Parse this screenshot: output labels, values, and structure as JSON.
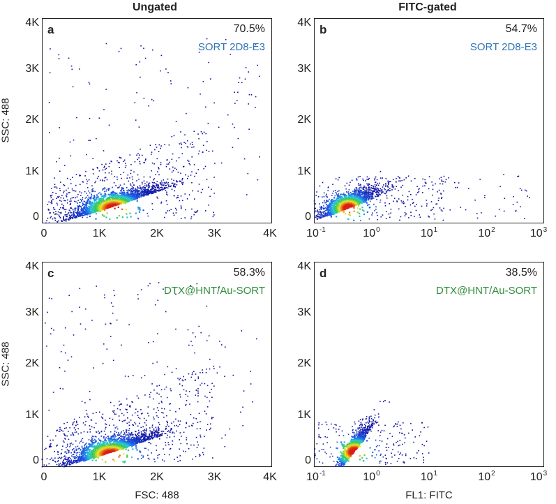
{
  "column_titles": [
    "Ungated",
    "FITC-gated"
  ],
  "colors": {
    "sort_label": "#2e75b6",
    "dtx_label": "#2f8f3a",
    "axis": "#222222",
    "dot_low": "#1010a0"
  },
  "chart_data": [
    {
      "type": "scatter",
      "panel": "a",
      "column": "Ungated",
      "sample": "SORT 2D8-E3",
      "percentage": "70.5%",
      "ylabel": "SSC: 488",
      "xlabel": "",
      "x_scale": "linear",
      "xlim": [
        0,
        4000
      ],
      "ylim": [
        0,
        4000
      ],
      "x_ticks": [
        "0",
        "1K",
        "2K",
        "3K",
        "4K"
      ],
      "y_ticks": [
        "0",
        "1K",
        "2K",
        "3K",
        "4K"
      ],
      "density_peak": {
        "x": 1250,
        "y": 300
      }
    },
    {
      "type": "scatter",
      "panel": "b",
      "column": "FITC-gated",
      "sample": "SORT 2D8-E3",
      "percentage": "54.7%",
      "ylabel": "",
      "xlabel": "",
      "x_scale": "log",
      "xlim": [
        -1,
        3
      ],
      "ylim": [
        0,
        4000
      ],
      "x_ticks_base": [
        "10",
        "10",
        "10",
        "10",
        "10"
      ],
      "x_ticks_exp": [
        "-1",
        "0",
        "1",
        "2",
        "3"
      ],
      "y_ticks": [
        "0",
        "1K",
        "2K",
        "3K",
        "4K"
      ],
      "density_peak": {
        "x": -0.4,
        "y": 300
      }
    },
    {
      "type": "scatter",
      "panel": "c",
      "column": "Ungated",
      "sample": "DTX@HNT/Au-SORT",
      "percentage": "58.3%",
      "ylabel": "SSC: 488",
      "xlabel": "FSC: 488",
      "x_scale": "linear",
      "xlim": [
        0,
        4000
      ],
      "ylim": [
        0,
        4000
      ],
      "x_ticks": [
        "0",
        "1K",
        "2K",
        "3K",
        "4K"
      ],
      "y_ticks": [
        "0",
        "1K",
        "2K",
        "3K",
        "4K"
      ],
      "density_peak": {
        "x": 1200,
        "y": 250
      }
    },
    {
      "type": "scatter",
      "panel": "d",
      "column": "FITC-gated",
      "sample": "DTX@HNT/Au-SORT",
      "percentage": "38.5%",
      "ylabel": "",
      "xlabel": "FL1: FITC",
      "x_scale": "log",
      "xlim": [
        -1,
        3
      ],
      "ylim": [
        0,
        4000
      ],
      "x_ticks_base": [
        "10",
        "10",
        "10",
        "10",
        "10"
      ],
      "x_ticks_exp": [
        "-1",
        "0",
        "1",
        "2",
        "3"
      ],
      "y_ticks": [
        "0",
        "1K",
        "2K",
        "3K",
        "4K"
      ],
      "density_peak": {
        "x": -0.3,
        "y": 300
      }
    }
  ]
}
